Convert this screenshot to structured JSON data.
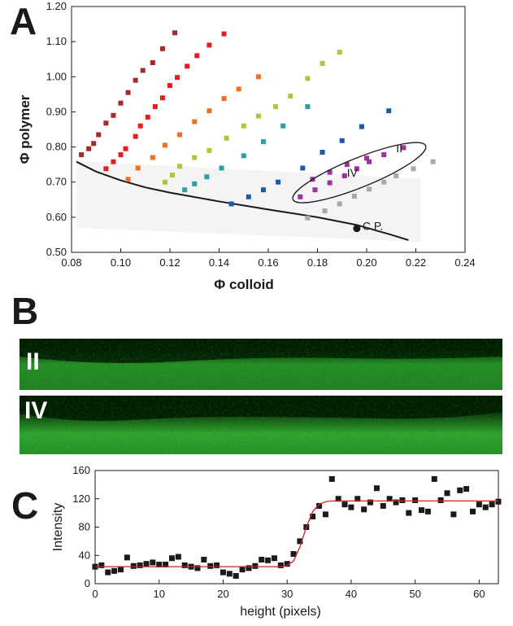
{
  "panels": {
    "a_label": "A",
    "b_label": "B",
    "c_label": "C",
    "image_ii_label": "II",
    "image_iv_label": "IV"
  },
  "colors": {
    "series": [
      "#a52a2a",
      "#e02020",
      "#f07020",
      "#a8c83a",
      "#2aa0a0",
      "#1a5aaa",
      "#a0309a",
      "#a8a8a8"
    ],
    "fit_line": "#d02020",
    "marker": "#1a1a1a",
    "image_green": "#3aa63a"
  },
  "chart_data": [
    {
      "type": "scatter",
      "panel": "A",
      "xlabel": "Φ colloid",
      "ylabel": "Φ polymer",
      "xlim": [
        0.08,
        0.24
      ],
      "ylim": [
        0.5,
        1.2
      ],
      "x_ticks": [
        "0.08",
        "0.10",
        "0.12",
        "0.14",
        "0.16",
        "0.18",
        "0.20",
        "0.22",
        "0.24"
      ],
      "y_ticks": [
        "0.50",
        "0.60",
        "0.70",
        "0.80",
        "0.90",
        "1.00",
        "1.10",
        "1.20"
      ],
      "series": [
        {
          "color": "#a52a2a",
          "points": [
            [
              0.084,
              0.778
            ],
            [
              0.087,
              0.795
            ],
            [
              0.089,
              0.81
            ],
            [
              0.091,
              0.835
            ],
            [
              0.094,
              0.868
            ],
            [
              0.097,
              0.89
            ],
            [
              0.1,
              0.925
            ],
            [
              0.103,
              0.955
            ],
            [
              0.106,
              0.99
            ],
            [
              0.109,
              1.018
            ],
            [
              0.113,
              1.04
            ],
            [
              0.117,
              1.08
            ],
            [
              0.122,
              1.125
            ]
          ]
        },
        {
          "color": "#e02020",
          "points": [
            [
              0.094,
              0.738
            ],
            [
              0.097,
              0.758
            ],
            [
              0.1,
              0.778
            ],
            [
              0.102,
              0.795
            ],
            [
              0.106,
              0.83
            ],
            [
              0.108,
              0.86
            ],
            [
              0.111,
              0.885
            ],
            [
              0.114,
              0.915
            ],
            [
              0.117,
              0.94
            ],
            [
              0.12,
              0.975
            ],
            [
              0.123,
              0.998
            ],
            [
              0.127,
              1.03
            ],
            [
              0.131,
              1.06
            ],
            [
              0.136,
              1.09
            ],
            [
              0.142,
              1.122
            ]
          ]
        },
        {
          "color": "#f07020",
          "points": [
            [
              0.103,
              0.708
            ],
            [
              0.107,
              0.74
            ],
            [
              0.113,
              0.77
            ],
            [
              0.118,
              0.805
            ],
            [
              0.124,
              0.835
            ],
            [
              0.13,
              0.872
            ],
            [
              0.136,
              0.903
            ],
            [
              0.142,
              0.938
            ],
            [
              0.148,
              0.965
            ],
            [
              0.156,
              1.0
            ]
          ]
        },
        {
          "color": "#a8c83a",
          "points": [
            [
              0.118,
              0.7
            ],
            [
              0.121,
              0.72
            ],
            [
              0.124,
              0.745
            ],
            [
              0.13,
              0.77
            ],
            [
              0.136,
              0.79
            ],
            [
              0.143,
              0.825
            ],
            [
              0.15,
              0.86
            ],
            [
              0.156,
              0.888
            ],
            [
              0.163,
              0.915
            ],
            [
              0.169,
              0.945
            ],
            [
              0.176,
              0.995
            ],
            [
              0.182,
              1.038
            ],
            [
              0.189,
              1.07
            ]
          ]
        },
        {
          "color": "#2aa0a0",
          "points": [
            [
              0.126,
              0.678
            ],
            [
              0.13,
              0.695
            ],
            [
              0.135,
              0.715
            ],
            [
              0.141,
              0.74
            ],
            [
              0.15,
              0.775
            ],
            [
              0.158,
              0.815
            ],
            [
              0.166,
              0.86
            ],
            [
              0.176,
              0.915
            ]
          ]
        },
        {
          "color": "#1a5aaa",
          "points": [
            [
              0.145,
              0.638
            ],
            [
              0.152,
              0.658
            ],
            [
              0.158,
              0.678
            ],
            [
              0.164,
              0.7
            ],
            [
              0.174,
              0.74
            ],
            [
              0.182,
              0.785
            ],
            [
              0.19,
              0.818
            ],
            [
              0.198,
              0.858
            ],
            [
              0.209,
              0.903
            ]
          ]
        },
        {
          "color": "#a0309a",
          "points": [
            [
              0.173,
              0.658
            ],
            [
              0.179,
              0.678
            ],
            [
              0.185,
              0.698
            ],
            [
              0.191,
              0.718
            ],
            [
              0.196,
              0.738
            ],
            [
              0.201,
              0.758
            ],
            [
              0.207,
              0.778
            ],
            [
              0.215,
              0.798
            ],
            [
              0.178,
              0.708
            ],
            [
              0.185,
              0.728
            ],
            [
              0.192,
              0.75
            ],
            [
              0.2,
              0.768
            ]
          ]
        },
        {
          "color": "#a8a8a8",
          "points": [
            [
              0.176,
              0.598
            ],
            [
              0.183,
              0.618
            ],
            [
              0.189,
              0.638
            ],
            [
              0.195,
              0.66
            ],
            [
              0.201,
              0.68
            ],
            [
              0.207,
              0.7
            ],
            [
              0.212,
              0.718
            ],
            [
              0.219,
              0.738
            ],
            [
              0.227,
              0.758
            ]
          ]
        }
      ],
      "phase_boundary": [
        [
          0.082,
          0.758
        ],
        [
          0.09,
          0.73
        ],
        [
          0.1,
          0.705
        ],
        [
          0.11,
          0.685
        ],
        [
          0.12,
          0.67
        ],
        [
          0.14,
          0.645
        ],
        [
          0.16,
          0.622
        ],
        [
          0.18,
          0.6
        ],
        [
          0.196,
          0.578
        ],
        [
          0.21,
          0.55
        ],
        [
          0.217,
          0.535
        ]
      ],
      "critical_point": {
        "x": 0.196,
        "y": 0.568,
        "label": "C.P."
      },
      "ellipse_labels": {
        "ii": "II",
        "iv": "IV"
      }
    },
    {
      "type": "scatter",
      "panel": "C",
      "xlabel": "height (pixels)",
      "ylabel": "Intensity",
      "xlim": [
        0,
        63
      ],
      "ylim": [
        0,
        160
      ],
      "x_ticks": [
        "0",
        "10",
        "20",
        "30",
        "40",
        "50",
        "60"
      ],
      "y_ticks": [
        "0",
        "40",
        "80",
        "120",
        "160"
      ],
      "points": [
        [
          0,
          24
        ],
        [
          1,
          26
        ],
        [
          2,
          16
        ],
        [
          3,
          18
        ],
        [
          4,
          20
        ],
        [
          5,
          37
        ],
        [
          6,
          25
        ],
        [
          7,
          26
        ],
        [
          8,
          28
        ],
        [
          9,
          30
        ],
        [
          10,
          27
        ],
        [
          11,
          27
        ],
        [
          12,
          36
        ],
        [
          13,
          38
        ],
        [
          14,
          26
        ],
        [
          15,
          24
        ],
        [
          16,
          22
        ],
        [
          17,
          34
        ],
        [
          18,
          25
        ],
        [
          19,
          26
        ],
        [
          20,
          16
        ],
        [
          21,
          14
        ],
        [
          22,
          11
        ],
        [
          23,
          20
        ],
        [
          24,
          22
        ],
        [
          25,
          25
        ],
        [
          26,
          34
        ],
        [
          27,
          33
        ],
        [
          28,
          36
        ],
        [
          29,
          26
        ],
        [
          30,
          28
        ],
        [
          31,
          42
        ],
        [
          32,
          60
        ],
        [
          33,
          80
        ],
        [
          34,
          95
        ],
        [
          35,
          110
        ],
        [
          36,
          98
        ],
        [
          37,
          148
        ],
        [
          38,
          120
        ],
        [
          39,
          112
        ],
        [
          40,
          108
        ],
        [
          41,
          120
        ],
        [
          42,
          105
        ],
        [
          43,
          115
        ],
        [
          44,
          135
        ],
        [
          45,
          110
        ],
        [
          46,
          120
        ],
        [
          47,
          115
        ],
        [
          48,
          118
        ],
        [
          49,
          100
        ],
        [
          50,
          118
        ],
        [
          51,
          104
        ],
        [
          52,
          102
        ],
        [
          53,
          148
        ],
        [
          54,
          118
        ],
        [
          55,
          128
        ],
        [
          56,
          98
        ],
        [
          57,
          132
        ],
        [
          58,
          134
        ],
        [
          59,
          102
        ],
        [
          60,
          112
        ],
        [
          61,
          108
        ],
        [
          62,
          112
        ],
        [
          63,
          116
        ]
      ],
      "fit_line": [
        [
          0,
          24
        ],
        [
          29,
          24
        ],
        [
          30,
          26
        ],
        [
          31,
          32
        ],
        [
          32,
          52
        ],
        [
          33,
          80
        ],
        [
          34,
          102
        ],
        [
          35,
          112
        ],
        [
          36,
          116
        ],
        [
          37,
          117
        ],
        [
          63,
          117
        ]
      ]
    }
  ]
}
